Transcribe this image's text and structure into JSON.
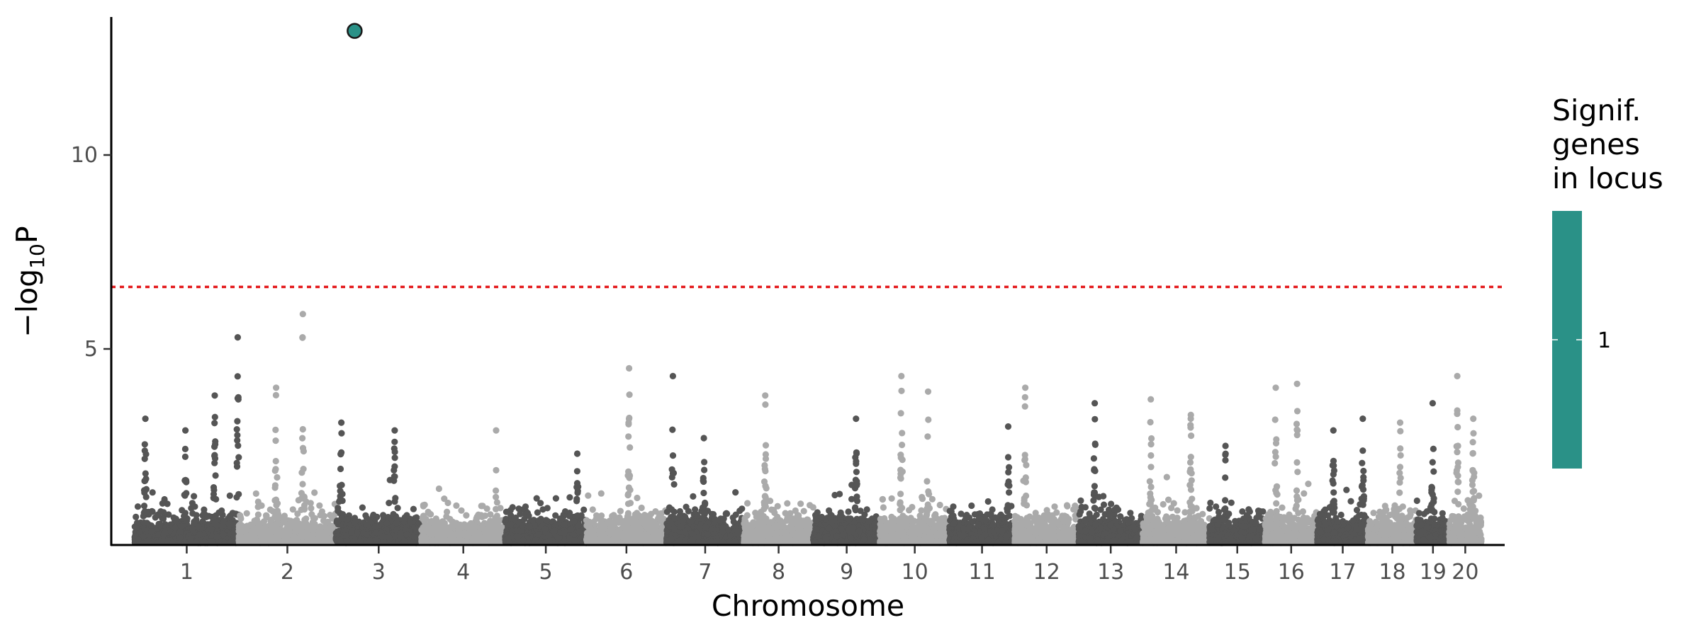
{
  "chart_data": {
    "type": "scatter",
    "xlabel": "Chromosome",
    "ylabel_parts": [
      "−log",
      "10",
      "P"
    ],
    "yticks": [
      5,
      10
    ],
    "ylim": [
      0,
      13.5
    ],
    "grid": false,
    "significance_threshold": 6.6,
    "threshold_color": "#e41a1c",
    "colors": {
      "dark": "#555555",
      "light": "#aaaaaa",
      "highlight": "#2a9187",
      "highlight_stroke": "#1a1a1a"
    },
    "chromosomes": [
      {
        "label": "1",
        "length": 195
      },
      {
        "label": "2",
        "length": 182
      },
      {
        "label": "3",
        "length": 160
      },
      {
        "label": "4",
        "length": 157
      },
      {
        "label": "5",
        "length": 152
      },
      {
        "label": "6",
        "length": 150
      },
      {
        "label": "7",
        "length": 145
      },
      {
        "label": "8",
        "length": 130
      },
      {
        "label": "9",
        "length": 125
      },
      {
        "label": "10",
        "length": 130
      },
      {
        "label": "11",
        "length": 122
      },
      {
        "label": "12",
        "length": 120
      },
      {
        "label": "13",
        "length": 120
      },
      {
        "label": "14",
        "length": 125
      },
      {
        "label": "15",
        "length": 104
      },
      {
        "label": "16",
        "length": 98
      },
      {
        "label": "17",
        "length": 95
      },
      {
        "label": "18",
        "length": 91
      },
      {
        "label": "19",
        "length": 61
      },
      {
        "label": "20",
        "length": 60
      }
    ],
    "peaks": [
      {
        "chr": "1",
        "pos": 20,
        "y": 3.2
      },
      {
        "chr": "1",
        "pos": 95,
        "y": 2.9
      },
      {
        "chr": "1",
        "pos": 150,
        "y": 3.8
      },
      {
        "chr": "1",
        "pos": 193,
        "y": 5.3
      },
      {
        "chr": "2",
        "pos": 70,
        "y": 4.0
      },
      {
        "chr": "2",
        "pos": 120,
        "y": 5.9
      },
      {
        "chr": "3",
        "pos": 10,
        "y": 3.1
      },
      {
        "chr": "3",
        "pos": 110,
        "y": 2.9
      },
      {
        "chr": "4",
        "pos": 140,
        "y": 2.9
      },
      {
        "chr": "5",
        "pos": 135,
        "y": 2.3
      },
      {
        "chr": "6",
        "pos": 80,
        "y": 4.5
      },
      {
        "chr": "7",
        "pos": 12,
        "y": 4.3
      },
      {
        "chr": "7",
        "pos": 70,
        "y": 2.7
      },
      {
        "chr": "8",
        "pos": 40,
        "y": 3.8
      },
      {
        "chr": "9",
        "pos": 80,
        "y": 3.2
      },
      {
        "chr": "10",
        "pos": 40,
        "y": 4.3
      },
      {
        "chr": "10",
        "pos": 90,
        "y": 3.9
      },
      {
        "chr": "11",
        "pos": 110,
        "y": 3.0
      },
      {
        "chr": "12",
        "pos": 20,
        "y": 4.0
      },
      {
        "chr": "13",
        "pos": 30,
        "y": 3.6
      },
      {
        "chr": "14",
        "pos": 15,
        "y": 3.7
      },
      {
        "chr": "14",
        "pos": 90,
        "y": 3.3
      },
      {
        "chr": "15",
        "pos": 30,
        "y": 2.5
      },
      {
        "chr": "16",
        "pos": 20,
        "y": 4.0
      },
      {
        "chr": "16",
        "pos": 60,
        "y": 4.1
      },
      {
        "chr": "17",
        "pos": 30,
        "y": 2.9
      },
      {
        "chr": "17",
        "pos": 85,
        "y": 3.2
      },
      {
        "chr": "18",
        "pos": 60,
        "y": 3.1
      },
      {
        "chr": "19",
        "pos": 30,
        "y": 3.6
      },
      {
        "chr": "20",
        "pos": 15,
        "y": 4.3
      },
      {
        "chr": "20",
        "pos": 45,
        "y": 3.2
      }
    ],
    "highlighted_point": {
      "chr": "3",
      "pos": 35,
      "y": 13.2,
      "signif_genes": 1
    },
    "legend": {
      "title_lines": [
        "Signif.",
        "genes",
        "in locus"
      ],
      "value_label": "1",
      "color": "#2a9187"
    }
  }
}
